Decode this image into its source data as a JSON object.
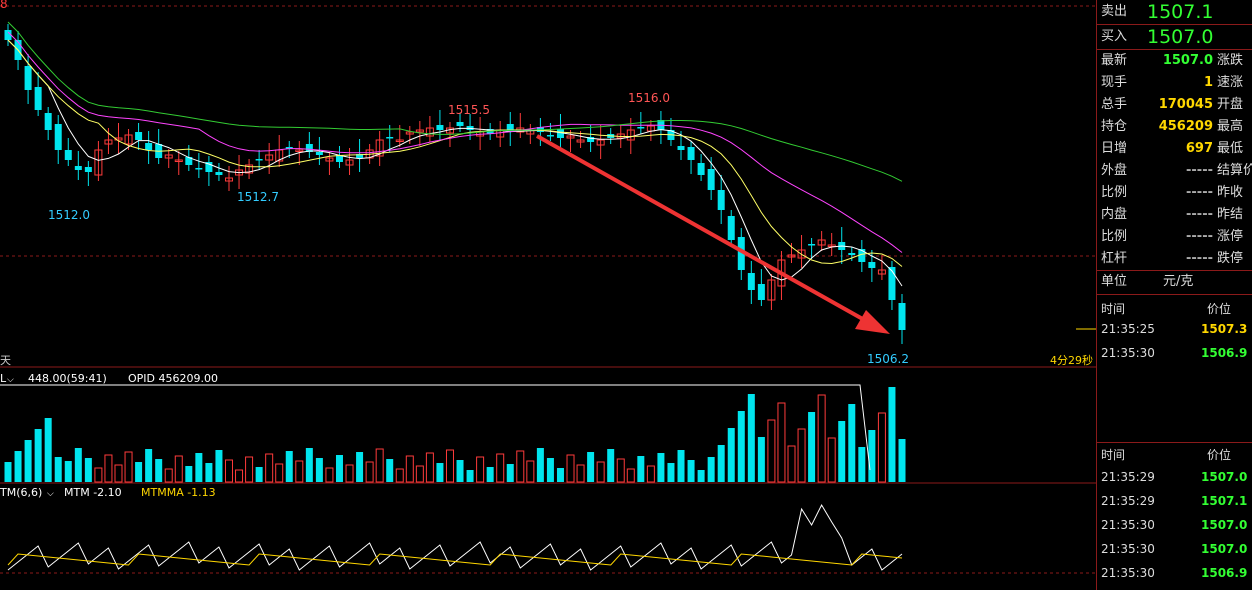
{
  "chart": {
    "top_left_label": "8",
    "high_label_left": "1515.5",
    "high_label_right": "1516.0",
    "low_label_1": "1512.0",
    "low_label_2": "1512.7",
    "low_label_last": "1506.2",
    "day_label": "天",
    "countdown": "4分29秒",
    "volume_header_name": "L",
    "volume_header_value": "448.00(59:41)",
    "opid": "OPID 456209.00",
    "indicator_name": "TM(6,6)",
    "mtm": "MTM -2.10",
    "mtmma": "MTMMA -1.13",
    "colors": {
      "up": "#ff3b3b",
      "down": "#00e5ee",
      "ma5": "#ffffff",
      "ma10": "#ffff66",
      "ma20": "#ff44ff",
      "ma60": "#33cc33",
      "arrow": "#ee3333",
      "grid": "#8b1a1a"
    }
  },
  "side": {
    "sell_label": "卖出",
    "sell_price": "1507.1",
    "buy_label": "买入",
    "buy_price": "1507.0",
    "rows": [
      {
        "label": "最新",
        "value": "1507.0",
        "label2": "涨跌",
        "color": "green"
      },
      {
        "label": "现手",
        "value": "1",
        "label2": "速涨",
        "color": "yellow"
      },
      {
        "label": "总手",
        "value": "170045",
        "label2": "开盘",
        "color": "yellow"
      },
      {
        "label": "持仓",
        "value": "456209",
        "label2": "最高",
        "color": "yellow"
      },
      {
        "label": "日增",
        "value": "697",
        "label2": "最低",
        "color": "yellow"
      },
      {
        "label": "外盘",
        "value": "-----",
        "label2": "结算价",
        "color": "grey"
      },
      {
        "label": "比例",
        "value": "-----",
        "label2": "昨收",
        "color": "grey"
      },
      {
        "label": "内盘",
        "value": "-----",
        "label2": "昨结",
        "color": "grey"
      },
      {
        "label": "比例",
        "value": "-----",
        "label2": "涨停",
        "color": "grey"
      },
      {
        "label": "杠杆",
        "value": "-----",
        "label2": "跌停",
        "color": "grey"
      }
    ],
    "unit_label": "单位",
    "unit_value": "元/克",
    "ticks1_header_time": "时间",
    "ticks1_header_price": "价位",
    "ticks1": [
      {
        "time": "21:35:25",
        "price": "1507.3",
        "color": "yellow"
      },
      {
        "time": "21:35:30",
        "price": "1506.9",
        "color": "green"
      }
    ],
    "ticks2_header_time": "时间",
    "ticks2_header_price": "价位",
    "ticks2": [
      {
        "time": "21:35:29",
        "price": "1507.0",
        "color": "green"
      },
      {
        "time": "21:35:29",
        "price": "1507.1",
        "color": "green"
      },
      {
        "time": "21:35:30",
        "price": "1507.0",
        "color": "green"
      },
      {
        "time": "21:35:30",
        "price": "1507.0",
        "color": "green"
      },
      {
        "time": "21:35:30",
        "price": "1506.9",
        "color": "green"
      }
    ]
  }
}
